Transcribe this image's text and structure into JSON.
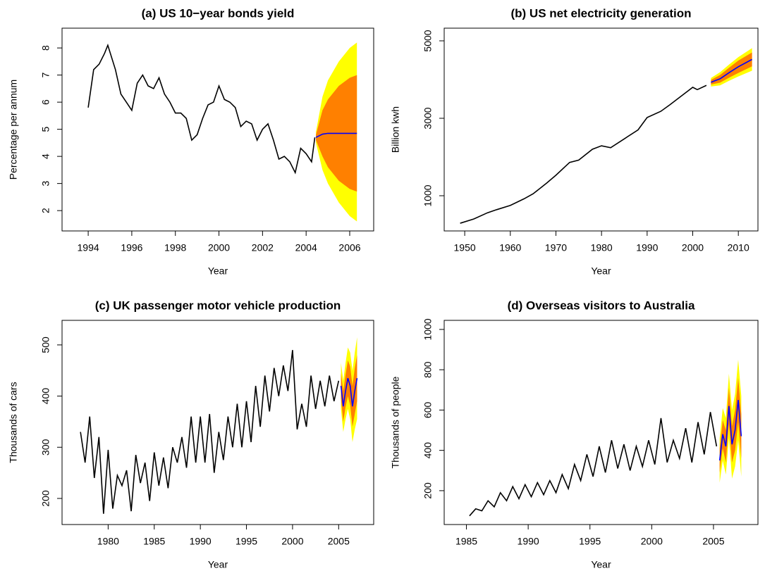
{
  "chart_data": [
    {
      "type": "line",
      "title": "(a) US 10−year bonds yield",
      "x_label": "Year",
      "y_label": "Percentage per annum",
      "xlim": [
        1992.8,
        2007.1
      ],
      "ylim": [
        1.25,
        8.73
      ],
      "xticks": [
        1994,
        1996,
        1998,
        2000,
        2002,
        2004,
        2006
      ],
      "yticks": [
        2,
        3,
        4,
        5,
        6,
        7,
        8
      ],
      "x": [
        1994.0,
        1994.25,
        1994.5,
        1994.75,
        1994.9,
        1995.25,
        1995.5,
        1995.75,
        1996.0,
        1996.25,
        1996.5,
        1996.75,
        1997.0,
        1997.25,
        1997.5,
        1997.75,
        1998.0,
        1998.25,
        1998.5,
        1998.75,
        1999.0,
        1999.25,
        1999.5,
        1999.75,
        2000.0,
        2000.25,
        2000.5,
        2000.75,
        2001.0,
        2001.25,
        2001.5,
        2001.75,
        2002.0,
        2002.25,
        2002.5,
        2002.75,
        2003.0,
        2003.25,
        2003.5,
        2003.75,
        2004.0,
        2004.25,
        2004.4
      ],
      "series": [
        {
          "color": "#000000",
          "values": [
            5.8,
            7.2,
            7.4,
            7.8,
            8.1,
            7.2,
            6.3,
            6.0,
            5.7,
            6.7,
            7.0,
            6.6,
            6.5,
            6.9,
            6.3,
            6.0,
            5.6,
            5.6,
            5.4,
            4.6,
            4.8,
            5.4,
            5.9,
            6.0,
            6.6,
            6.1,
            6.0,
            5.8,
            5.1,
            5.3,
            5.2,
            4.6,
            5.0,
            5.2,
            4.6,
            3.9,
            4.0,
            3.8,
            3.4,
            4.3,
            4.1,
            3.8,
            4.7
          ]
        }
      ],
      "forecast": {
        "x": [
          2004.45,
          2004.75,
          2005.0,
          2005.5,
          2006.0,
          2006.33
        ],
        "color": "#0000ff",
        "values": [
          4.7,
          4.82,
          4.85,
          4.85,
          4.85,
          4.85
        ],
        "bands": [
          {
            "color": "#ffff00",
            "lower": [
              4.5,
              3.5,
              3.0,
              2.3,
              1.8,
              1.6
            ],
            "upper": [
              4.9,
              6.2,
              6.8,
              7.5,
              8.0,
              8.2
            ]
          },
          {
            "color": "#ff8000",
            "lower": [
              4.6,
              4.0,
              3.6,
              3.1,
              2.8,
              2.7
            ],
            "upper": [
              4.8,
              5.7,
              6.1,
              6.6,
              6.9,
              7.0
            ]
          }
        ]
      }
    },
    {
      "type": "line",
      "title": "(b) US net electricity generation",
      "x_label": "Year",
      "y_label": "Billion kwh",
      "xlim": [
        1945.5,
        2014.3
      ],
      "ylim": [
        91,
        5327
      ],
      "xticks": [
        1950,
        1960,
        1970,
        1980,
        1990,
        2000,
        2010
      ],
      "yticks": [
        1000,
        3000,
        5000
      ],
      "x": [
        1949,
        1952,
        1955,
        1957,
        1960,
        1963,
        1965,
        1968,
        1970,
        1973,
        1975,
        1978,
        1980,
        1982,
        1985,
        1988,
        1990,
        1993,
        1995,
        1998,
        2000,
        2001,
        2003
      ],
      "series": [
        {
          "color": "#000000",
          "values": [
            290,
            400,
            560,
            640,
            750,
            920,
            1050,
            1330,
            1530,
            1860,
            1920,
            2200,
            2290,
            2240,
            2470,
            2700,
            3020,
            3180,
            3350,
            3620,
            3800,
            3740,
            3850
          ]
        }
      ],
      "forecast": {
        "x": [
          2004,
          2006,
          2008,
          2010,
          2013
        ],
        "color": "#0000ff",
        "values": [
          3930,
          4020,
          4180,
          4330,
          4520
        ],
        "bands": [
          {
            "color": "#ffff00",
            "lower": [
              3820,
              3850,
              3970,
              4080,
              4230
            ],
            "upper": [
              4040,
              4190,
              4390,
              4580,
              4810
            ]
          },
          {
            "color": "#ff8000",
            "lower": [
              3870,
              3920,
              4050,
              4170,
              4340
            ],
            "upper": [
              3990,
              4120,
              4310,
              4490,
              4700
            ]
          }
        ]
      }
    },
    {
      "type": "line",
      "title": "(c) UK passenger motor vehicle production",
      "x_label": "Year",
      "y_label": "Thousands of cars",
      "xlim": [
        1975.0,
        2008.8
      ],
      "ylim": [
        149,
        548
      ],
      "xticks": [
        1980,
        1985,
        1990,
        1995,
        2000,
        2005
      ],
      "yticks": [
        200,
        300,
        400,
        500
      ],
      "x": [
        1977.0,
        1977.5,
        1978.0,
        1978.5,
        1979.0,
        1979.5,
        1980.0,
        1980.5,
        1981.0,
        1981.5,
        1982.0,
        1982.5,
        1983.0,
        1983.5,
        1984.0,
        1984.5,
        1985.0,
        1985.5,
        1986.0,
        1986.5,
        1987.0,
        1987.5,
        1988.0,
        1988.5,
        1989.0,
        1989.5,
        1990.0,
        1990.5,
        1991.0,
        1991.5,
        1992.0,
        1992.5,
        1993.0,
        1993.5,
        1994.0,
        1994.5,
        1995.0,
        1995.5,
        1996.0,
        1996.5,
        1997.0,
        1997.5,
        1998.0,
        1998.5,
        1999.0,
        1999.5,
        2000.0,
        2000.5,
        2001.0,
        2001.5,
        2002.0,
        2002.5,
        2003.0,
        2003.5,
        2004.0,
        2004.5,
        2005.0
      ],
      "series": [
        {
          "color": "#000000",
          "values": [
            330,
            270,
            360,
            240,
            320,
            170,
            295,
            180,
            245,
            225,
            255,
            175,
            285,
            230,
            270,
            195,
            290,
            225,
            280,
            220,
            300,
            270,
            320,
            260,
            360,
            270,
            360,
            270,
            365,
            250,
            330,
            275,
            360,
            300,
            385,
            300,
            390,
            310,
            420,
            340,
            440,
            370,
            455,
            400,
            460,
            410,
            490,
            335,
            385,
            340,
            440,
            375,
            430,
            380,
            440,
            390,
            430
          ]
        }
      ],
      "forecast": {
        "x": [
          2005.25,
          2005.5,
          2005.75,
          2006.0,
          2006.25,
          2006.5,
          2006.75,
          2007.0
        ],
        "color": "#0000ff",
        "values": [
          420,
          380,
          410,
          435,
          420,
          380,
          410,
          435
        ],
        "bands": [
          {
            "color": "#ffff00",
            "lower": [
              375,
              330,
              355,
              375,
              355,
              310,
              335,
              355
            ],
            "upper": [
              465,
              430,
              465,
              495,
              485,
              450,
              485,
              515
            ]
          },
          {
            "color": "#ff8000",
            "lower": [
              395,
              350,
              378,
              400,
              382,
              340,
              365,
              390
            ],
            "upper": [
              445,
              410,
              442,
              470,
              458,
              420,
              455,
              480
            ]
          }
        ]
      }
    },
    {
      "type": "line",
      "title": "(d) Overseas visitors to Australia",
      "x_label": "Year",
      "y_label": "Thousands of people",
      "xlim": [
        1983.2,
        2008.6
      ],
      "ylim": [
        32,
        1045
      ],
      "xticks": [
        1985,
        1990,
        1995,
        2000,
        2005
      ],
      "yticks": [
        200,
        400,
        600,
        800,
        1000
      ],
      "x": [
        1985.25,
        1985.75,
        1986.25,
        1986.75,
        1987.25,
        1987.75,
        1988.25,
        1988.75,
        1989.25,
        1989.75,
        1990.25,
        1990.75,
        1991.25,
        1991.75,
        1992.25,
        1992.75,
        1993.25,
        1993.75,
        1994.25,
        1994.75,
        1995.25,
        1995.75,
        1996.25,
        1996.75,
        1997.25,
        1997.75,
        1998.25,
        1998.75,
        1999.25,
        1999.75,
        2000.25,
        2000.75,
        2001.25,
        2001.75,
        2002.25,
        2002.75,
        2003.25,
        2003.75,
        2004.25,
        2004.75,
        2005.25
      ],
      "series": [
        {
          "color": "#000000",
          "values": [
            75,
            110,
            100,
            150,
            120,
            190,
            150,
            220,
            160,
            230,
            170,
            240,
            180,
            250,
            190,
            280,
            210,
            330,
            250,
            380,
            270,
            420,
            290,
            450,
            310,
            430,
            300,
            420,
            320,
            450,
            330,
            560,
            340,
            450,
            360,
            510,
            340,
            540,
            380,
            590,
            420
          ]
        }
      ],
      "forecast": {
        "x": [
          2005.5,
          2005.75,
          2006.0,
          2006.25,
          2006.5,
          2006.75,
          2007.0,
          2007.25
        ],
        "color": "#0000ff",
        "values": [
          350,
          480,
          420,
          620,
          430,
          500,
          650,
          470
        ],
        "bands": [
          {
            "color": "#ffff00",
            "lower": [
              240,
              350,
              280,
              460,
              260,
              320,
              450,
              270
            ],
            "upper": [
              460,
              610,
              560,
              780,
              600,
              680,
              850,
              670
            ]
          },
          {
            "color": "#ff8000",
            "lower": [
              290,
              410,
              340,
              530,
              340,
              400,
              540,
              360
            ],
            "upper": [
              410,
              550,
              500,
              710,
              520,
              600,
              760,
              580
            ]
          }
        ]
      }
    }
  ]
}
